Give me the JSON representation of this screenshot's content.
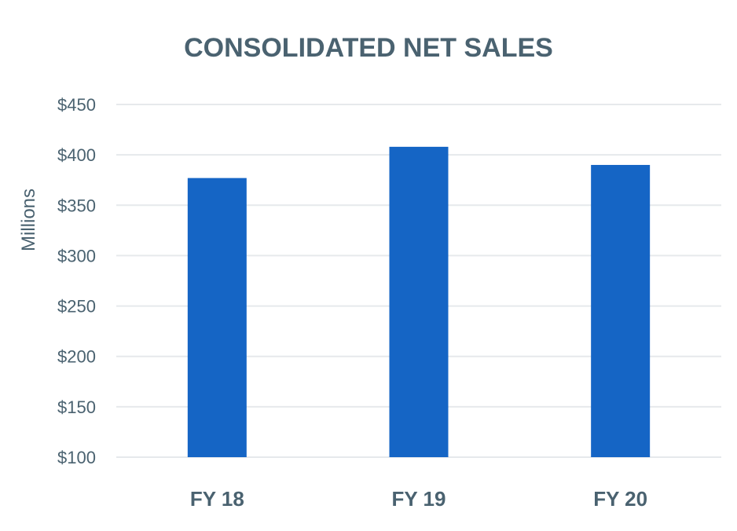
{
  "chart_data": {
    "type": "bar",
    "title": "CONSOLIDATED NET SALES",
    "xlabel": "",
    "ylabel": "Millions",
    "categories": [
      "FY 18",
      "FY 19",
      "FY 20"
    ],
    "values": [
      377,
      408,
      390
    ],
    "ylim": [
      100,
      450
    ],
    "yticks": [
      100,
      150,
      200,
      250,
      300,
      350,
      400,
      450
    ],
    "ytick_labels": [
      "$100",
      "$150",
      "$200",
      "$250",
      "$300",
      "$350",
      "$400",
      "$450"
    ],
    "grid": true,
    "legend": "none",
    "bar_color": "#1565c5"
  }
}
